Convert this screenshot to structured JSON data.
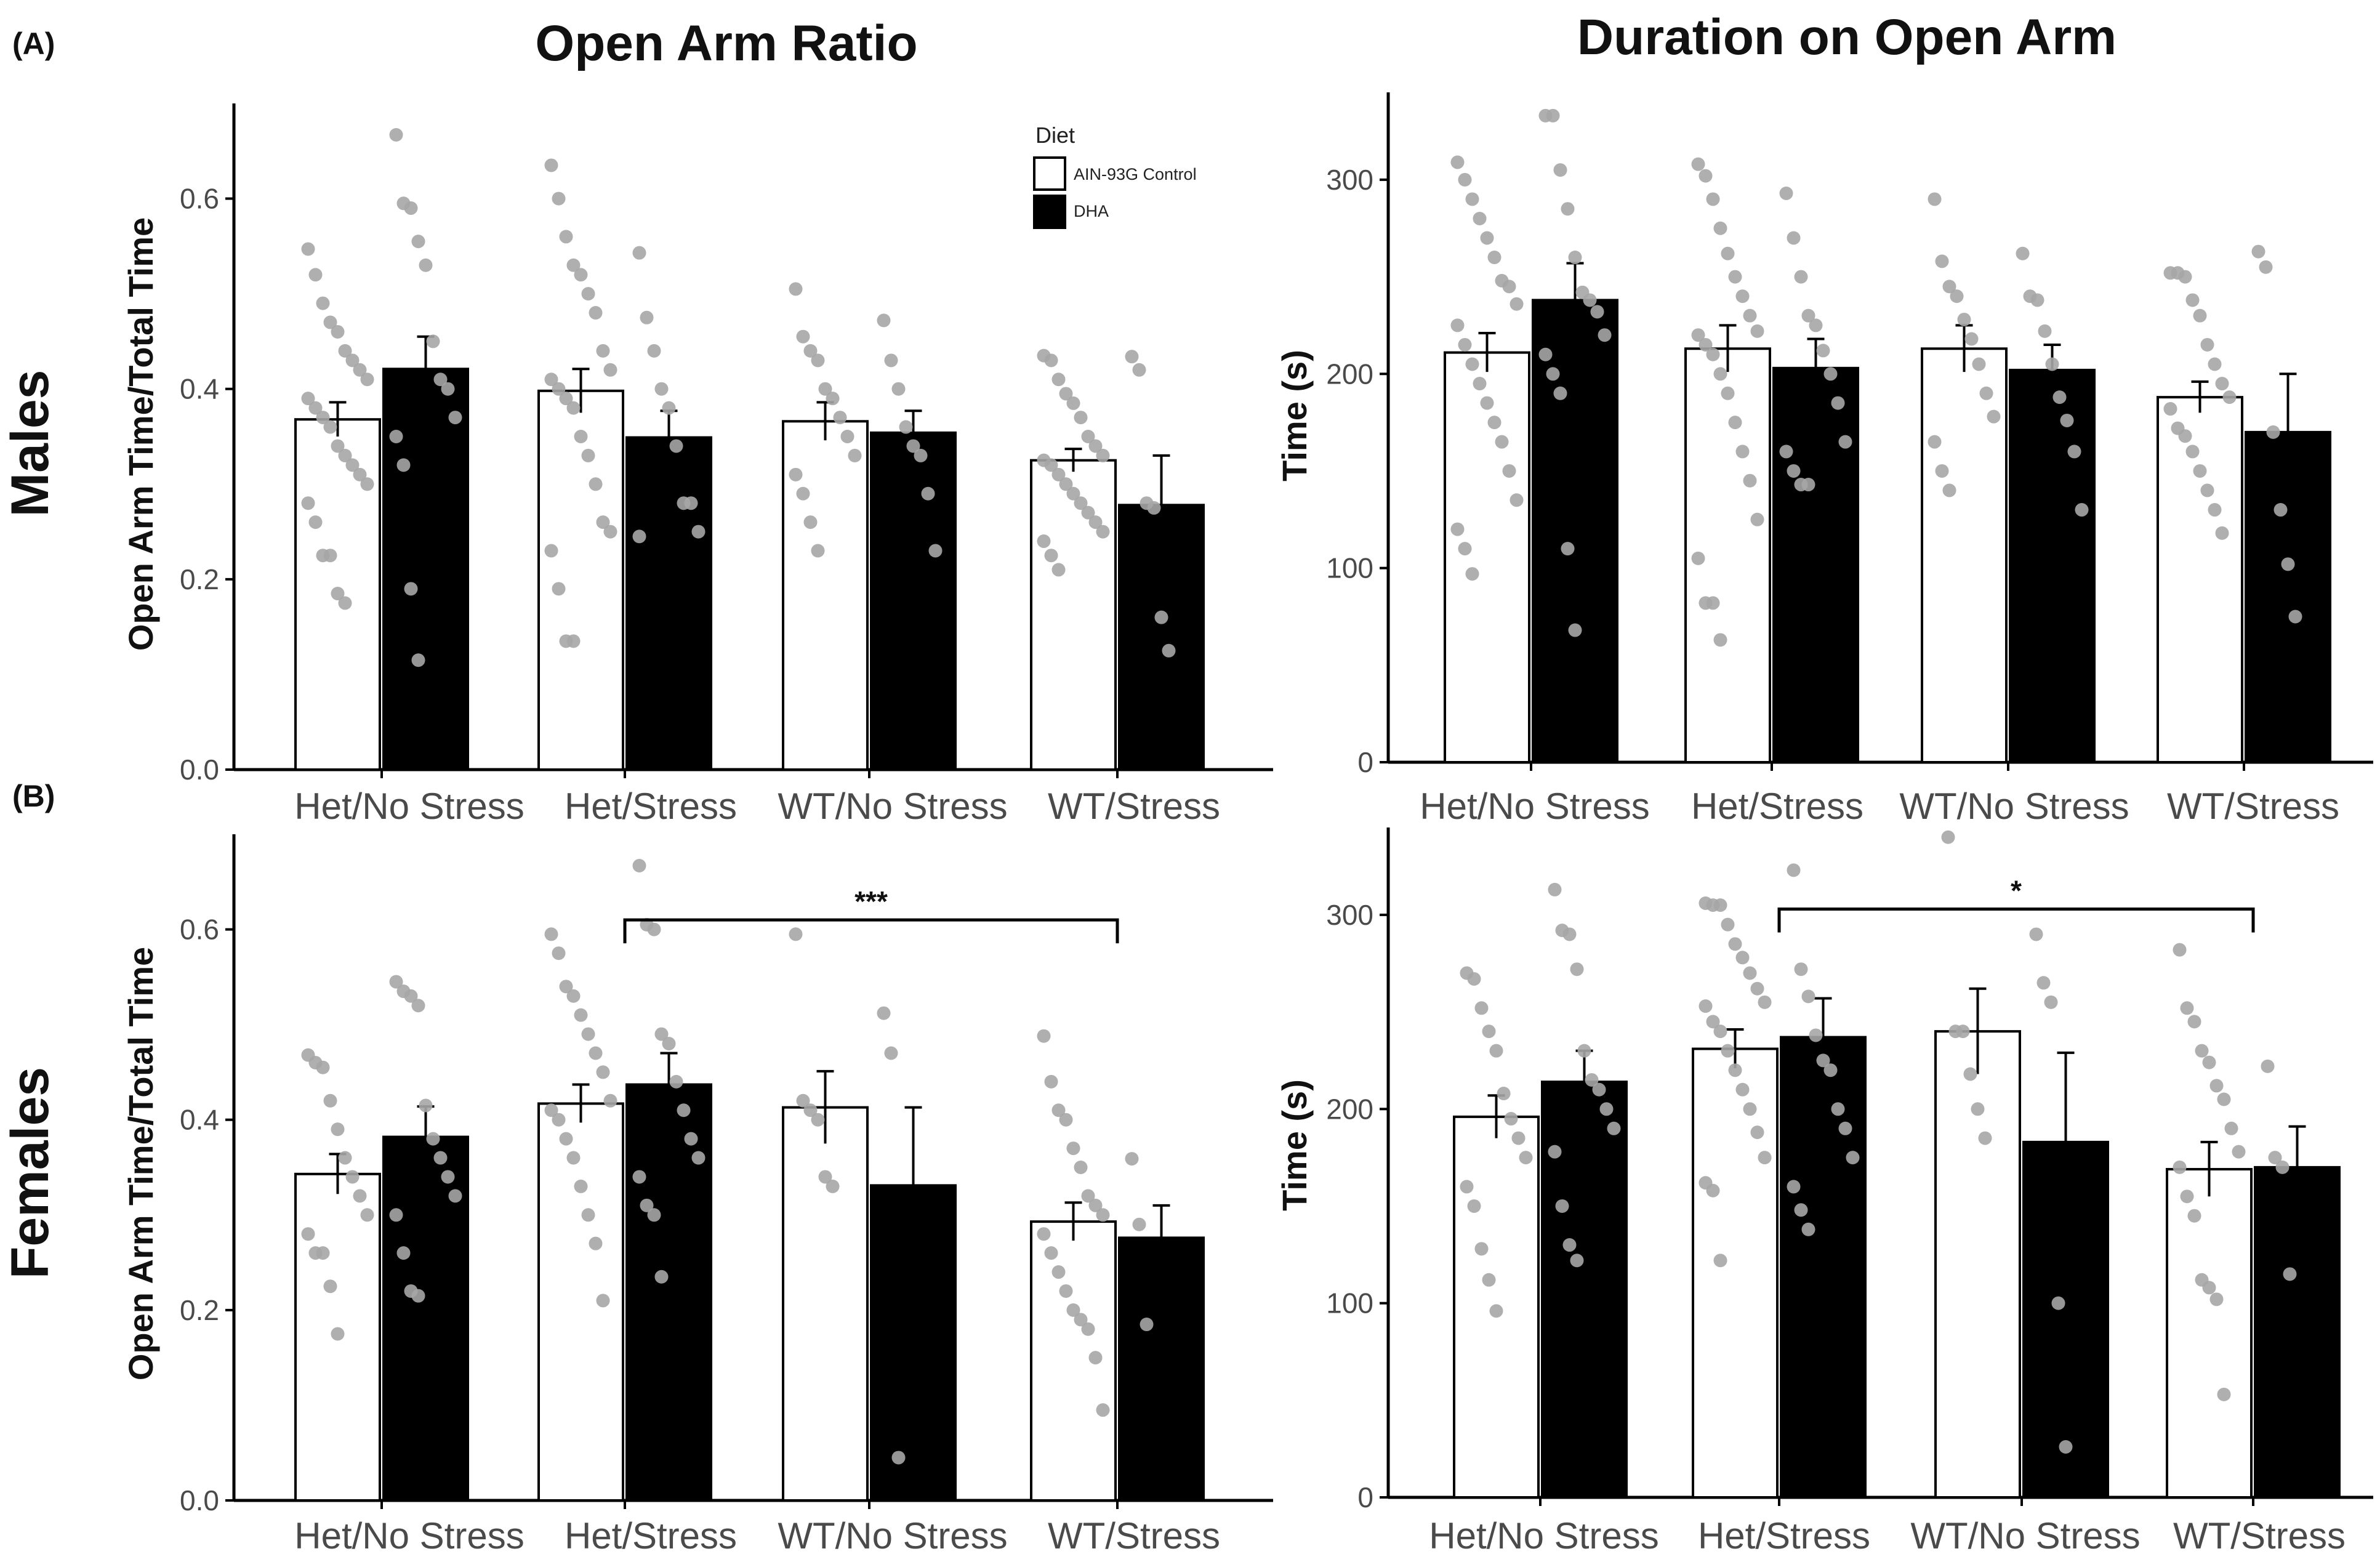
{
  "figure": {
    "panel_labels": [
      "(A)",
      "(B)"
    ],
    "row_labels": [
      "Males",
      "Females"
    ],
    "column_titles": [
      "Open Arm Ratio",
      "Duration on Open Arm"
    ]
  },
  "colors": {
    "control": "#ffffff",
    "dha": "#000000",
    "points": "#a6a6a6",
    "axis": "#000000"
  },
  "chart_data": [
    {
      "id": "males_ratio",
      "type": "bar",
      "title": "Open Arm Ratio",
      "ylabel": "Open Arm Time/Total Time",
      "xlabel": "",
      "ylim": [
        0,
        0.7
      ],
      "yticks": [
        0.0,
        0.2,
        0.4,
        0.6
      ],
      "ytick_labels": [
        "0.0",
        "0.2",
        "0.4",
        "0.6"
      ],
      "categories": [
        "Het/No Stress",
        "Het/Stress",
        "WT/No Stress",
        "WT/Stress"
      ],
      "legend": {
        "title": "Diet",
        "position": "top-right",
        "entries": [
          "AIN-93G Control",
          "DHA"
        ]
      },
      "series": [
        {
          "name": "AIN-93G Control",
          "values": [
            0.368,
            0.398,
            0.366,
            0.325
          ],
          "errors": [
            0.018,
            0.023,
            0.02,
            0.012
          ],
          "points": [
            [
              0.547,
              0.52,
              0.49,
              0.47,
              0.46,
              0.44,
              0.43,
              0.42,
              0.41,
              0.39,
              0.38,
              0.37,
              0.36,
              0.34,
              0.33,
              0.32,
              0.31,
              0.3,
              0.28,
              0.26,
              0.225,
              0.225,
              0.185,
              0.175
            ],
            [
              0.635,
              0.6,
              0.56,
              0.53,
              0.52,
              0.5,
              0.48,
              0.44,
              0.42,
              0.41,
              0.4,
              0.39,
              0.38,
              0.35,
              0.33,
              0.3,
              0.26,
              0.25,
              0.23,
              0.19,
              0.135,
              0.135
            ],
            [
              0.505,
              0.455,
              0.44,
              0.43,
              0.4,
              0.39,
              0.37,
              0.35,
              0.33,
              0.31,
              0.29,
              0.26,
              0.23
            ],
            [
              0.435,
              0.43,
              0.41,
              0.395,
              0.385,
              0.37,
              0.35,
              0.34,
              0.33,
              0.325,
              0.32,
              0.31,
              0.3,
              0.29,
              0.28,
              0.27,
              0.26,
              0.25,
              0.24,
              0.225,
              0.21
            ]
          ]
        },
        {
          "name": "DHA",
          "values": [
            0.421,
            0.349,
            0.354,
            0.278
          ],
          "errors": [
            0.034,
            0.028,
            0.023,
            0.052
          ],
          "points": [
            [
              0.667,
              0.595,
              0.59,
              0.555,
              0.53,
              0.45,
              0.41,
              0.4,
              0.37,
              0.35,
              0.32,
              0.19,
              0.115
            ],
            [
              0.543,
              0.475,
              0.44,
              0.4,
              0.38,
              0.34,
              0.28,
              0.28,
              0.25,
              0.245
            ],
            [
              0.472,
              0.43,
              0.4,
              0.36,
              0.34,
              0.33,
              0.29,
              0.23
            ],
            [
              0.434,
              0.42,
              0.28,
              0.275,
              0.16,
              0.125
            ]
          ]
        }
      ]
    },
    {
      "id": "males_duration",
      "type": "bar",
      "title": "Duration on Open Arm",
      "ylabel": "Time (s)",
      "xlabel": "",
      "ylim": [
        0,
        345
      ],
      "yticks": [
        0,
        100,
        200,
        300
      ],
      "ytick_labels": [
        "0",
        "100",
        "200",
        "300"
      ],
      "categories": [
        "Het/No Stress",
        "Het/Stress",
        "WT/No Stress",
        "WT/Stress"
      ],
      "series": [
        {
          "name": "AIN-93G Control",
          "values": [
            211,
            213,
            213,
            188
          ],
          "errors": [
            10,
            12,
            12,
            8
          ],
          "points": [
            [
              309,
              300,
              290,
              280,
              270,
              260,
              248,
              245,
              236,
              225,
              215,
              205,
              195,
              185,
              175,
              165,
              150,
              135,
              120,
              110,
              97
            ],
            [
              308,
              302,
              290,
              275,
              262,
              250,
              240,
              230,
              222,
              220,
              215,
              210,
              200,
              190,
              175,
              160,
              145,
              125,
              105,
              82,
              82,
              63
            ],
            [
              290,
              258,
              245,
              240,
              228,
              218,
              205,
              190,
              178,
              165,
              150,
              140
            ],
            [
              252,
              252,
              250,
              238,
              230,
              215,
              205,
              195,
              188,
              182,
              172,
              168,
              160,
              150,
              140,
              130,
              118
            ]
          ]
        },
        {
          "name": "DHA",
          "values": [
            238,
            203,
            202,
            170
          ],
          "errors": [
            19,
            15,
            13,
            30
          ],
          "points": [
            [
              333,
              333,
              305,
              285,
              260,
              242,
              238,
              232,
              220,
              210,
              200,
              190,
              110,
              68
            ],
            [
              293,
              270,
              250,
              230,
              225,
              212,
              200,
              185,
              165,
              160,
              150,
              143,
              143
            ],
            [
              262,
              240,
              238,
              222,
              205,
              188,
              176,
              160,
              130
            ],
            [
              263,
              255,
              170,
              130,
              102,
              75
            ]
          ]
        }
      ]
    },
    {
      "id": "females_ratio",
      "type": "bar",
      "title": "",
      "ylabel": "Open Arm Time/Total Time",
      "xlabel": "",
      "ylim": [
        0,
        0.7
      ],
      "yticks": [
        0.0,
        0.2,
        0.4,
        0.6
      ],
      "ytick_labels": [
        "0.0",
        "0.2",
        "0.4",
        "0.6"
      ],
      "categories": [
        "Het/No Stress",
        "Het/Stress",
        "WT/No Stress",
        "WT/Stress"
      ],
      "significance": {
        "from": "Het/Stress",
        "to": "WT/Stress",
        "label": "***"
      },
      "series": [
        {
          "name": "AIN-93G Control",
          "values": [
            0.343,
            0.417,
            0.413,
            0.293
          ],
          "errors": [
            0.021,
            0.02,
            0.038,
            0.02
          ],
          "points": [
            [
              0.468,
              0.46,
              0.455,
              0.42,
              0.39,
              0.36,
              0.34,
              0.32,
              0.3,
              0.28,
              0.26,
              0.26,
              0.225,
              0.175
            ],
            [
              0.595,
              0.575,
              0.54,
              0.53,
              0.51,
              0.49,
              0.47,
              0.45,
              0.42,
              0.41,
              0.4,
              0.38,
              0.36,
              0.33,
              0.3,
              0.27,
              0.21
            ],
            [
              0.595,
              0.42,
              0.41,
              0.4,
              0.34,
              0.33
            ],
            [
              0.488,
              0.44,
              0.41,
              0.4,
              0.37,
              0.35,
              0.32,
              0.31,
              0.3,
              0.28,
              0.26,
              0.24,
              0.22,
              0.2,
              0.19,
              0.18,
              0.15,
              0.095
            ]
          ]
        },
        {
          "name": "DHA",
          "values": [
            0.382,
            0.437,
            0.331,
            0.276
          ],
          "errors": [
            0.032,
            0.033,
            0.082,
            0.034
          ],
          "points": [
            [
              0.545,
              0.535,
              0.53,
              0.52,
              0.415,
              0.38,
              0.36,
              0.34,
              0.32,
              0.3,
              0.26,
              0.22,
              0.215
            ],
            [
              0.667,
              0.605,
              0.6,
              0.49,
              0.48,
              0.44,
              0.41,
              0.38,
              0.36,
              0.34,
              0.31,
              0.3,
              0.235
            ],
            [
              0.512,
              0.47,
              0.045
            ],
            [
              0.359,
              0.29,
              0.185
            ]
          ]
        }
      ]
    },
    {
      "id": "females_duration",
      "type": "bar",
      "title": "",
      "ylabel": "Time (s)",
      "xlabel": "",
      "ylim": [
        0,
        345
      ],
      "yticks": [
        0,
        100,
        200,
        300
      ],
      "ytick_labels": [
        "0",
        "100",
        "200",
        "300"
      ],
      "categories": [
        "Het/No Stress",
        "Het/Stress",
        "WT/No Stress",
        "WT/Stress"
      ],
      "significance": {
        "from": "Het/Stress",
        "to": "WT/Stress",
        "label": "*"
      },
      "series": [
        {
          "name": "AIN-93G Control",
          "values": [
            196,
            231,
            240,
            169
          ],
          "errors": [
            11,
            10,
            22,
            14
          ],
          "points": [
            [
              270,
              267,
              252,
              240,
              230,
              208,
              195,
              185,
              175,
              160,
              150,
              128,
              112,
              96
            ],
            [
              306,
              305,
              305,
              295,
              285,
              278,
              270,
              262,
              255,
              253,
              245,
              240,
              230,
              220,
              210,
              200,
              188,
              175,
              162,
              158,
              122
            ],
            [
              340,
              240,
              240,
              218,
              200,
              185
            ],
            [
              282,
              252,
              245,
              230,
              224,
              212,
              205,
              190,
              178,
              170,
              155,
              145,
              112,
              108,
              102,
              53
            ]
          ]
        },
        {
          "name": "DHA",
          "values": [
            214,
            237,
            183,
            170
          ],
          "errors": [
            16,
            20,
            46,
            21
          ],
          "points": [
            [
              313,
              292,
              290,
              272,
              230,
              215,
              210,
              200,
              190,
              178,
              150,
              130,
              122
            ],
            [
              323,
              272,
              258,
              238,
              225,
              220,
              200,
              190,
              175,
              160,
              148,
              138
            ],
            [
              290,
              265,
              255,
              100,
              26
            ],
            [
              222,
              175,
              170,
              115
            ]
          ]
        }
      ]
    }
  ]
}
